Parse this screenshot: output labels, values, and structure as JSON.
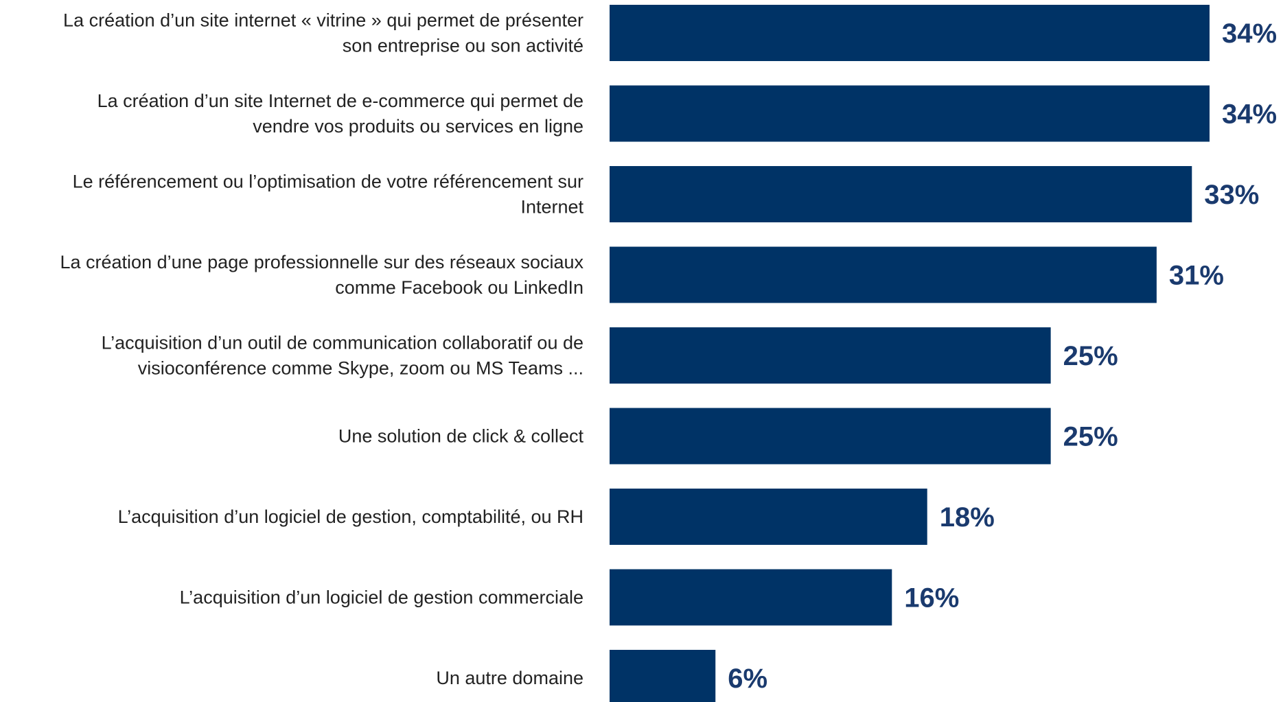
{
  "chart_data": {
    "type": "bar",
    "orientation": "horizontal",
    "title": "",
    "xlabel": "",
    "ylabel": "",
    "xlim": [
      0,
      34
    ],
    "grid": false,
    "legend": "none",
    "colors": {
      "bar": "#003366",
      "value_label": "#1a3a6e",
      "category_label": "#222222"
    },
    "categories": [
      [
        "La création d’un site internet « vitrine » qui permet de présenter",
        "son entreprise ou son activité"
      ],
      [
        "La création d’un site Internet de e-commerce qui permet de",
        "vendre vos produits ou services en ligne"
      ],
      [
        "Le référencement ou l’optimisation de votre référencement sur",
        "Internet"
      ],
      [
        "La création d’une page professionnelle sur des réseaux sociaux",
        "comme Facebook ou LinkedIn"
      ],
      [
        "L’acquisition d’un outil de communication collaboratif ou de",
        "visioconférence comme Skype, zoom ou MS Teams ..."
      ],
      [
        "Une solution de click & collect"
      ],
      [
        "L’acquisition d’un logiciel de gestion, comptabilité, ou RH"
      ],
      [
        "L’acquisition d’un logiciel de gestion commerciale"
      ],
      [
        "Un autre domaine"
      ]
    ],
    "values": [
      34,
      34,
      33,
      31,
      25,
      25,
      18,
      16,
      6
    ],
    "value_labels": [
      "34%",
      "34%",
      "33%",
      "31%",
      "25%",
      "25%",
      "18%",
      "16%",
      "6%"
    ]
  }
}
